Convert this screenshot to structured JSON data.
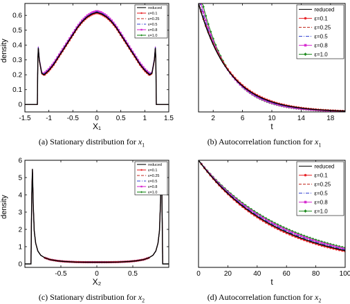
{
  "figure": {
    "captions": [
      {
        "prefix": "(a) Stationary distribution for ",
        "var": "x",
        "sub": "1"
      },
      {
        "prefix": "(b) Autocorrelation function for ",
        "var": "x",
        "sub": "1"
      },
      {
        "prefix": "(c) Stationary distribution for ",
        "var": "x",
        "sub": "2"
      },
      {
        "prefix": "(d) Autocorrelation function for ",
        "var": "x",
        "sub": "2"
      }
    ]
  },
  "chart_data": [
    {
      "type": "line",
      "xlabel": "X₁",
      "ylabel": "density",
      "xlim": [
        -1.5,
        1.5
      ],
      "ylim": [
        -0.05,
        0.68
      ],
      "xticks": [
        -1.5,
        -1,
        -0.5,
        0,
        0.5,
        1,
        1.5
      ],
      "xtick_labels": [
        "-1.5",
        "-1",
        "-0.5",
        "0",
        "0.5",
        "1",
        "1.5"
      ],
      "yticks": [
        0,
        0.1,
        0.2,
        0.3,
        0.4,
        0.5,
        0.6
      ],
      "ytick_labels": [
        "0",
        "0.1",
        "0.2",
        "0.3",
        "0.4",
        "0.5",
        "0.6"
      ],
      "legend_position": "top-right",
      "legend": [
        "reduced",
        "ε=0.1",
        "ε=0.25",
        "ε=0.5",
        "ε=0.8",
        "ε=1.0"
      ],
      "series": [
        {
          "name": "reduced",
          "color": "#000000",
          "style": "solid",
          "marker": "none",
          "x": [
            -1.5,
            -1.24,
            -1.23,
            -1.22,
            -1.2,
            -1.15,
            -1.1,
            -1.0,
            -0.9,
            -0.8,
            -0.7,
            -0.6,
            -0.5,
            -0.4,
            -0.3,
            -0.2,
            -0.1,
            0,
            0.1,
            0.2,
            0.3,
            0.4,
            0.5,
            0.6,
            0.7,
            0.8,
            0.9,
            1.0,
            1.1,
            1.15,
            1.2,
            1.22,
            1.23,
            1.24,
            1.5
          ],
          "y": [
            0,
            0,
            0.3,
            0.38,
            0.3,
            0.21,
            0.2,
            0.23,
            0.27,
            0.32,
            0.37,
            0.42,
            0.47,
            0.52,
            0.56,
            0.59,
            0.61,
            0.62,
            0.61,
            0.59,
            0.56,
            0.52,
            0.47,
            0.42,
            0.37,
            0.32,
            0.27,
            0.23,
            0.2,
            0.21,
            0.3,
            0.38,
            0.3,
            0,
            0
          ]
        },
        {
          "name": "ε=0.1",
          "color": "#e8262a",
          "style": "solid",
          "marker": "circle",
          "dy": -0.005
        },
        {
          "name": "ε=0.25",
          "color": "#c1271d",
          "style": "dashed",
          "marker": "none",
          "dy": 0.0
        },
        {
          "name": "ε=0.5",
          "color": "#2f3fd0",
          "style": "dashdot",
          "marker": "none",
          "dy": 0.005
        },
        {
          "name": "ε=0.8",
          "color": "#d62bd0",
          "style": "solid",
          "marker": "square",
          "dy": 0.01
        },
        {
          "name": "ε=1.0",
          "color": "#1d8a1d",
          "style": "solid",
          "marker": "diamond",
          "dy": 0.003
        }
      ]
    },
    {
      "type": "line",
      "xlabel": "t",
      "ylabel": "",
      "xlim": [
        0,
        20
      ],
      "ylim": [
        0,
        1
      ],
      "xticks": [
        2,
        6,
        10,
        14,
        18
      ],
      "xtick_labels": [
        "2",
        "6",
        "10",
        "14",
        "18"
      ],
      "yticks": [],
      "ytick_labels": [],
      "legend_position": "top-right",
      "legend": [
        "reduced",
        "ε=0.1",
        "ε=0.25",
        "ε=0.5",
        "ε=0.8",
        "ε=1.0"
      ],
      "series": [
        {
          "name": "reduced",
          "color": "#000000",
          "style": "solid",
          "marker": "none",
          "tau": 4.2,
          "delay": 0.0
        },
        {
          "name": "ε=0.1",
          "color": "#e8262a",
          "style": "solid",
          "marker": "circle",
          "tau": 4.3,
          "delay": 0.0
        },
        {
          "name": "ε=0.25",
          "color": "#c1271d",
          "style": "dashed",
          "marker": "none",
          "tau": 4.2,
          "delay": 0.05
        },
        {
          "name": "ε=0.5",
          "color": "#2f3fd0",
          "style": "dashdot",
          "marker": "none",
          "tau": 4.0,
          "delay": 0.2
        },
        {
          "name": "ε=0.8",
          "color": "#d62bd0",
          "style": "solid",
          "marker": "square",
          "tau": 3.85,
          "delay": 0.35
        },
        {
          "name": "ε=1.0",
          "color": "#1d8a1d",
          "style": "solid",
          "marker": "diamond",
          "tau": 3.7,
          "delay": 0.55
        }
      ]
    },
    {
      "type": "line",
      "xlabel": "X₂",
      "ylabel": "density",
      "xlim": [
        -1.0,
        1.0
      ],
      "ylim": [
        -0.2,
        6
      ],
      "xticks": [
        -0.5,
        0,
        0.5
      ],
      "xtick_labels": [
        "-0.5",
        "0",
        "0.5"
      ],
      "yticks": [
        0,
        1,
        2,
        3,
        4,
        5,
        6
      ],
      "ytick_labels": [
        "0",
        "1",
        "2",
        "3",
        "4",
        "5",
        "6"
      ],
      "legend_position": "top-right",
      "legend": [
        "reduced",
        "ε=0.1",
        "ε=0.25",
        "ε=0.5",
        "ε=0.8",
        "ε=1.0"
      ],
      "series": [
        {
          "name": "reduced",
          "color": "#000000",
          "style": "solid",
          "marker": "none",
          "x": [
            -1.0,
            -0.915,
            -0.905,
            -0.895,
            -0.885,
            -0.87,
            -0.85,
            -0.82,
            -0.78,
            -0.72,
            -0.65,
            -0.55,
            -0.45,
            -0.3,
            -0.15,
            0,
            0.15,
            0.3,
            0.45,
            0.55,
            0.65,
            0.72,
            0.78,
            0.82,
            0.85,
            0.87,
            0.885,
            0.895,
            0.905,
            0.915,
            1.0
          ],
          "y": [
            0,
            0,
            4.0,
            5.5,
            3.5,
            1.9,
            1.2,
            0.75,
            0.5,
            0.35,
            0.25,
            0.18,
            0.14,
            0.11,
            0.1,
            0.1,
            0.1,
            0.11,
            0.14,
            0.18,
            0.25,
            0.35,
            0.5,
            0.75,
            1.2,
            1.9,
            3.5,
            5.5,
            4.0,
            0,
            0
          ]
        },
        {
          "name": "ε=0.1",
          "color": "#e8262a",
          "style": "solid",
          "marker": "circle",
          "dy": 0.0
        },
        {
          "name": "ε=0.25",
          "color": "#c1271d",
          "style": "dashed",
          "marker": "none",
          "dy": 0.0
        },
        {
          "name": "ε=0.5",
          "color": "#2f3fd0",
          "style": "dashdot",
          "marker": "none",
          "dy": 0.0
        },
        {
          "name": "ε=0.8",
          "color": "#d62bd0",
          "style": "solid",
          "marker": "square",
          "dy": 0.0
        },
        {
          "name": "ε=1.0",
          "color": "#1d8a1d",
          "style": "solid",
          "marker": "diamond",
          "dy": 0.0
        }
      ]
    },
    {
      "type": "line",
      "xlabel": "t",
      "ylabel": "",
      "xlim": [
        0,
        100
      ],
      "ylim": [
        0,
        1
      ],
      "xticks": [
        0,
        20,
        40,
        60,
        80,
        100
      ],
      "xtick_labels": [
        "0",
        "20",
        "40",
        "60",
        "80",
        "100"
      ],
      "yticks": [],
      "ytick_labels": [],
      "legend_position": "top-right",
      "legend": [
        "reduced",
        "ε=0.1",
        "ε=0.25",
        "ε=0.5",
        "ε=0.8",
        "ε=1.0"
      ],
      "series": [
        {
          "name": "reduced",
          "color": "#000000",
          "style": "solid",
          "marker": "none",
          "tau": 54
        },
        {
          "name": "ε=0.1",
          "color": "#e8262a",
          "style": "solid",
          "marker": "circle",
          "tau": 52.5
        },
        {
          "name": "ε=0.25",
          "color": "#c1271d",
          "style": "dashed",
          "marker": "none",
          "tau": 54
        },
        {
          "name": "ε=0.5",
          "color": "#2f3fd0",
          "style": "dashdot",
          "marker": "none",
          "tau": 55.5
        },
        {
          "name": "ε=0.8",
          "color": "#d62bd0",
          "style": "solid",
          "marker": "square",
          "tau": 57
        },
        {
          "name": "ε=1.0",
          "color": "#1d8a1d",
          "style": "solid",
          "marker": "diamond",
          "tau": 59
        }
      ]
    }
  ]
}
